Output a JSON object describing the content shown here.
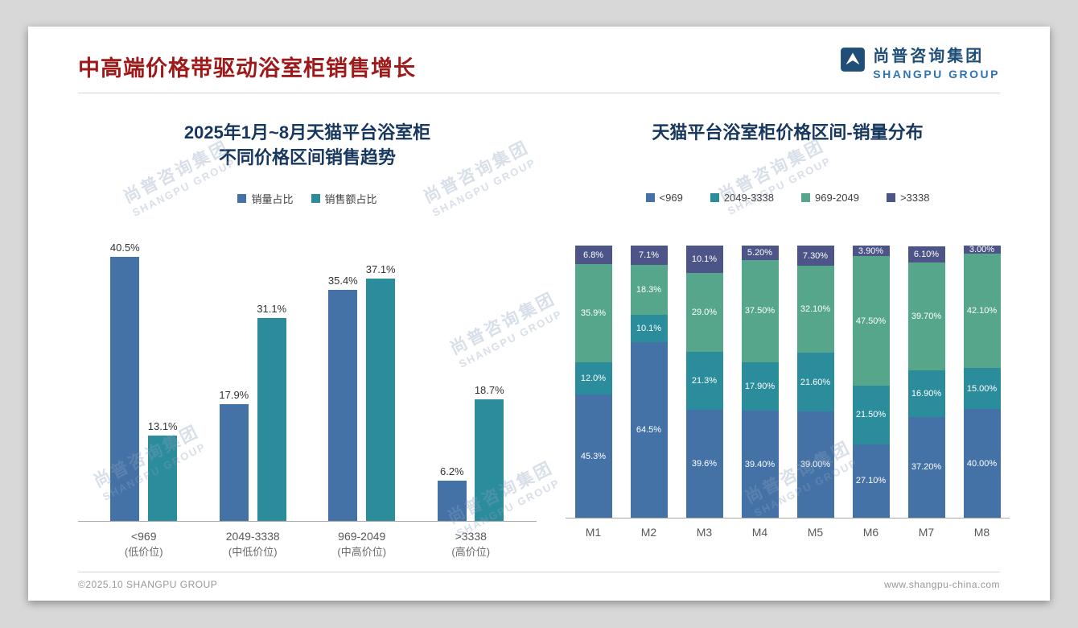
{
  "page": {
    "title": "中高端价格带驱动浴室柜销售增长",
    "footer_left": "©2025.10 SHANGPU GROUP",
    "footer_right": "www.shangpu-china.com"
  },
  "logo": {
    "cn": "尚普咨询集团",
    "en": "SHANGPU GROUP"
  },
  "watermark": {
    "cn": "尚普咨询集团",
    "en": "SHANGPU GROUP"
  },
  "chart_data": [
    {
      "type": "bar",
      "title": "2025年1月~8月天猫平台浴室柜\n不同价格区间销售趋势",
      "categories": [
        {
          "label": "<969",
          "sub": "(低价位)"
        },
        {
          "label": "2049-3338",
          "sub": "(中低价位)"
        },
        {
          "label": "969-2049",
          "sub": "(中高价位)"
        },
        {
          "label": ">3338",
          "sub": "(高价位)"
        }
      ],
      "series": [
        {
          "name": "销量占比",
          "color": "#4472A6",
          "values": [
            40.5,
            17.9,
            35.4,
            6.2
          ],
          "labels": [
            "40.5%",
            "17.9%",
            "35.4%",
            "6.2%"
          ]
        },
        {
          "name": "销售额占比",
          "color": "#2B8C9B",
          "values": [
            13.1,
            31.1,
            37.1,
            18.7
          ],
          "labels": [
            "13.1%",
            "31.1%",
            "37.1%",
            "18.7%"
          ]
        }
      ],
      "unit": "%",
      "ylim": [
        0,
        45
      ],
      "grid": false,
      "legend_position": "top"
    },
    {
      "type": "stacked-bar",
      "title": "天猫平台浴室柜价格区间-销量分布",
      "categories": [
        "M1",
        "M2",
        "M3",
        "M4",
        "M5",
        "M6",
        "M7",
        "M8"
      ],
      "series": [
        {
          "name": "<969",
          "color": "#4472A6",
          "values": [
            45.3,
            64.5,
            39.6,
            39.4,
            39.0,
            27.1,
            37.2,
            40.0
          ],
          "labels": [
            "45.3%",
            "64.5%",
            "39.6%",
            "39.40%",
            "39.00%",
            "27.10%",
            "37.20%",
            "40.00%"
          ]
        },
        {
          "name": "2049-3338",
          "color": "#2B8C9B",
          "values": [
            12.0,
            10.1,
            21.3,
            17.9,
            21.6,
            21.5,
            16.9,
            15.0
          ],
          "labels": [
            "12.0%",
            "10.1%",
            "21.3%",
            "17.90%",
            "21.60%",
            "21.50%",
            "16.90%",
            "15.00%"
          ]
        },
        {
          "name": "969-2049",
          "color": "#56A68B",
          "values": [
            35.9,
            18.3,
            29.0,
            37.5,
            32.1,
            47.5,
            39.7,
            42.1
          ],
          "labels": [
            "35.9%",
            "18.3%",
            "29.0%",
            "37.50%",
            "32.10%",
            "47.50%",
            "39.70%",
            "42.10%"
          ]
        },
        {
          "name": ">3338",
          "color": "#4D5488",
          "values": [
            6.8,
            7.1,
            10.1,
            5.2,
            7.3,
            3.9,
            6.1,
            3.0
          ],
          "labels": [
            "6.8%",
            "7.1%",
            "10.1%",
            "5.20%",
            "7.30%",
            "3.90%",
            "6.10%",
            "3.00%"
          ]
        }
      ],
      "unit": "%",
      "ylim": [
        0,
        100
      ],
      "grid": false,
      "legend_position": "top"
    }
  ]
}
